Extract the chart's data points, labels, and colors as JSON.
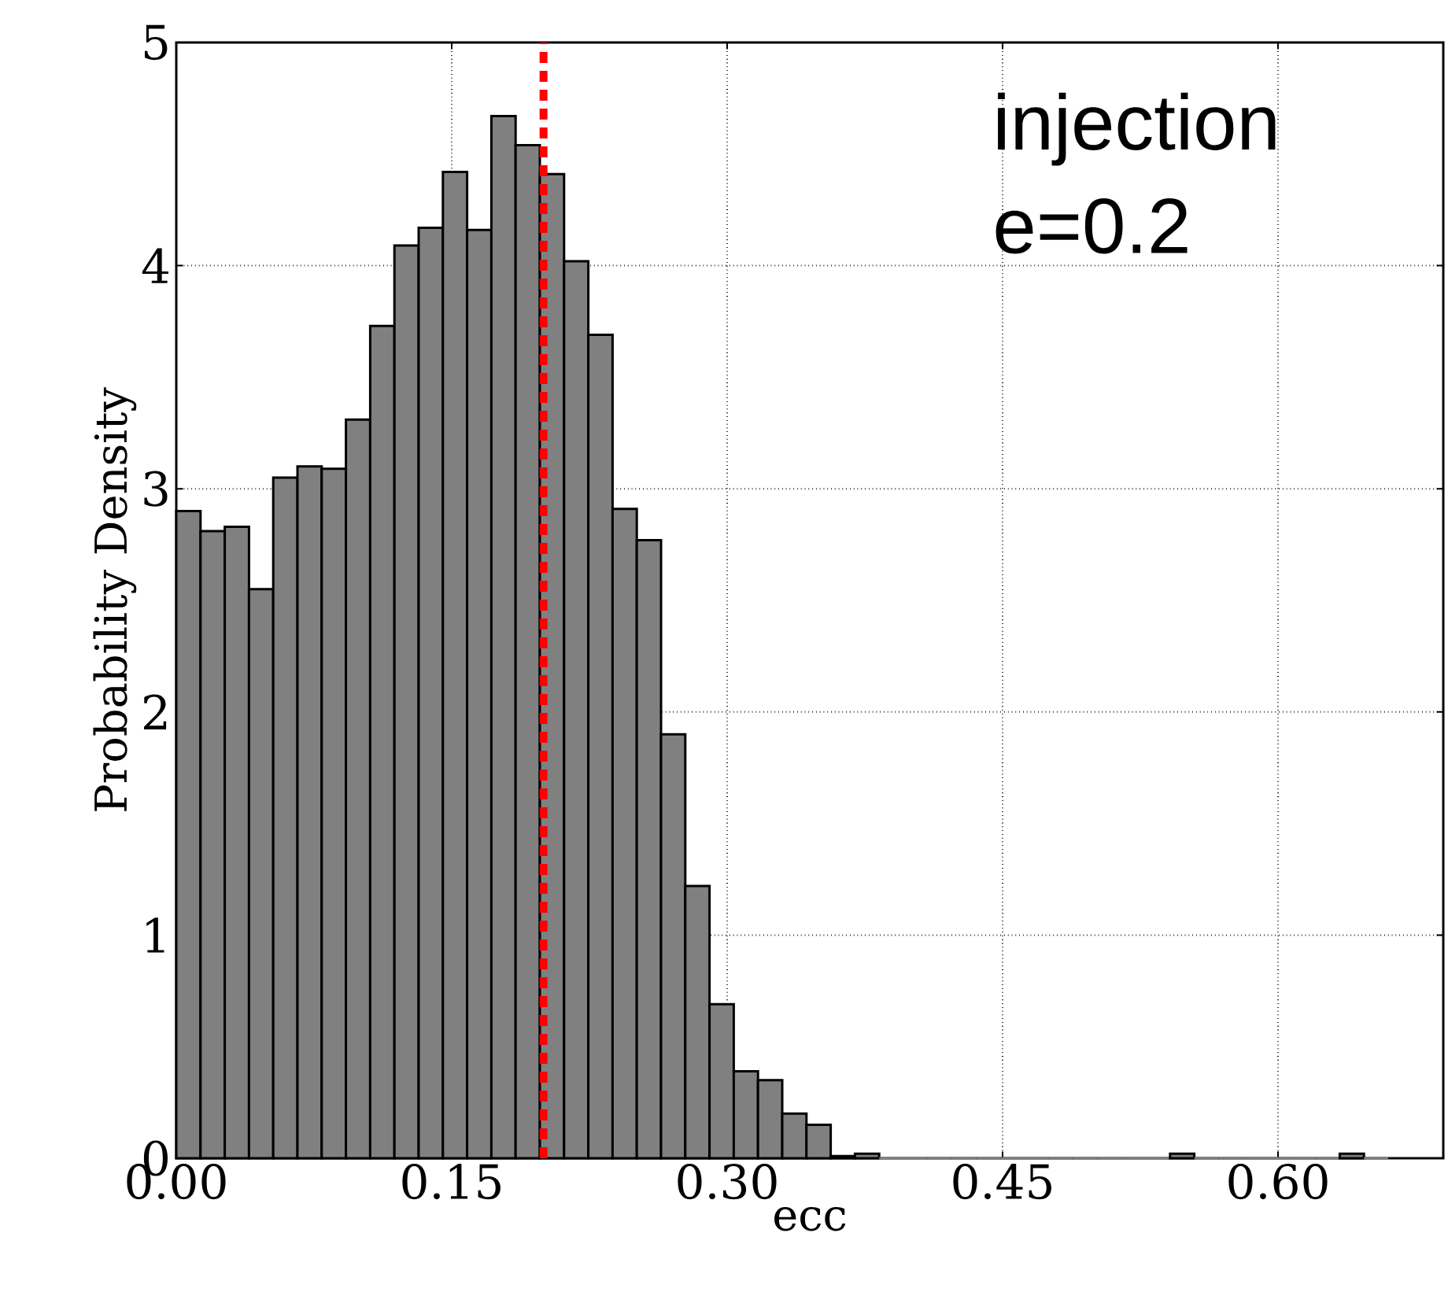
{
  "chart_data": {
    "type": "histogram",
    "xlabel": "ecc",
    "ylabel": "Probability Density",
    "bins": [
      0,
      0.0132,
      0.0264,
      0.0396,
      0.0528,
      0.066,
      0.0792,
      0.0924,
      0.1056,
      0.1188,
      0.132,
      0.1452,
      0.1584,
      0.1716,
      0.1848,
      0.198,
      0.2112,
      0.2244,
      0.2376,
      0.2508,
      0.264,
      0.2772,
      0.2904,
      0.3036,
      0.3168,
      0.33,
      0.3432,
      0.3564,
      0.3696,
      0.3828,
      0.396,
      0.4092,
      0.4224,
      0.4356,
      0.4488,
      0.462,
      0.4752,
      0.4884,
      0.5016,
      0.5148,
      0.528,
      0.5412,
      0.5544,
      0.5676,
      0.5808,
      0.594,
      0.6072,
      0.6204,
      0.6336,
      0.6468,
      0.66
    ],
    "values": [
      2.9,
      2.81,
      2.83,
      2.55,
      3.05,
      3.1,
      3.09,
      3.31,
      3.73,
      4.09,
      4.17,
      4.42,
      4.16,
      4.67,
      4.54,
      4.41,
      4.02,
      3.69,
      2.91,
      2.77,
      1.9,
      1.22,
      0.69,
      0.39,
      0.35,
      0.2,
      0.15,
      0.01,
      0.02,
      0,
      0,
      0,
      0,
      0,
      0,
      0,
      0,
      0,
      0,
      0,
      0,
      0.02,
      0,
      0,
      0,
      0,
      0,
      0,
      0.02,
      0
    ],
    "color": "#808080",
    "xlim": [
      0,
      0.69
    ],
    "ylim": [
      0,
      5
    ],
    "xticks": [
      {
        "value": 0,
        "label": "0.00"
      },
      {
        "value": 0.15,
        "label": "0.15"
      },
      {
        "value": 0.3,
        "label": "0.30"
      },
      {
        "value": 0.45,
        "label": "0.45"
      },
      {
        "value": 0.6,
        "label": "0.60"
      }
    ],
    "yticks": [
      0,
      1,
      2,
      3,
      4,
      5
    ],
    "grid": true,
    "ref_lines": [
      {
        "axis": "x",
        "value": 0.2,
        "color": "#ff0000",
        "line_style": "dashed"
      }
    ],
    "annotations": [
      "injection",
      "e=0.2"
    ]
  }
}
